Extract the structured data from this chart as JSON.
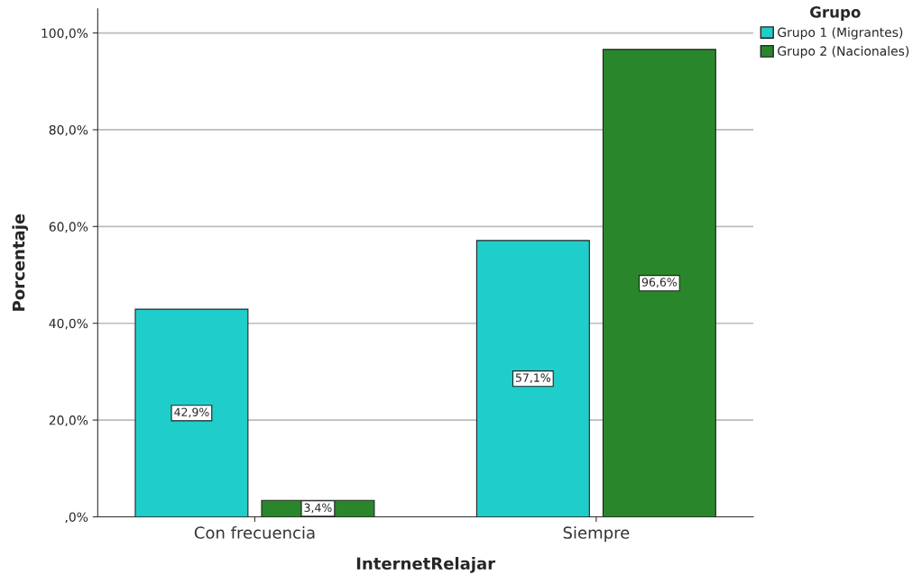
{
  "chart_data": {
    "type": "bar",
    "xlabel": "InternetRelajar",
    "ylabel": "Porcentaje",
    "legend_title": "Grupo",
    "categories": [
      "Con frecuencia",
      "Siempre"
    ],
    "series": [
      {
        "name": "Grupo 1 (Migrantes)",
        "color": "#1fcecb",
        "values": [
          42.9,
          57.1
        ],
        "value_labels": [
          "42,9%",
          "57,1%"
        ]
      },
      {
        "name": "Grupo 2 (Nacionales)",
        "color": "#2a862a",
        "values": [
          3.4,
          96.6
        ],
        "value_labels": [
          "3,4%",
          "96,6%"
        ]
      }
    ],
    "ylim": [
      0,
      105
    ],
    "yticks": [
      {
        "value": 0,
        "label": ",0%"
      },
      {
        "value": 20,
        "label": "20,0%"
      },
      {
        "value": 40,
        "label": "40,0%"
      },
      {
        "value": 60,
        "label": "60,0%"
      },
      {
        "value": 80,
        "label": "80,0%"
      },
      {
        "value": 100,
        "label": "100,0%"
      }
    ],
    "grid": "y",
    "legend": "top right"
  }
}
